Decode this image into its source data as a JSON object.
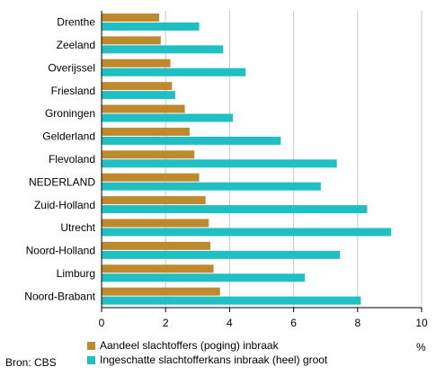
{
  "chart_data": {
    "type": "bar",
    "orientation": "horizontal",
    "categories": [
      "Drenthe",
      "Zeeland",
      "Overijssel",
      "Friesland",
      "Groningen",
      "Gelderland",
      "Flevoland",
      "NEDERLAND",
      "Zuid-Holland",
      "Utrecht",
      "Noord-Holland",
      "Limburg",
      "Noord-Brabant"
    ],
    "series": [
      {
        "name": "Aandeel slachtoffers (poging) inbraak",
        "color": "#BF8A2E",
        "values": [
          1.8,
          1.85,
          2.15,
          2.2,
          2.6,
          2.75,
          2.9,
          3.05,
          3.25,
          3.35,
          3.4,
          3.5,
          3.7
        ]
      },
      {
        "name": "Ingeschatte slachtofferkans inbraak (heel) groot",
        "color": "#1FBFC4",
        "values": [
          3.05,
          3.8,
          4.5,
          2.3,
          4.1,
          5.6,
          7.35,
          6.85,
          8.3,
          9.05,
          7.45,
          6.35,
          8.1
        ]
      }
    ],
    "xlim": [
      0,
      10
    ],
    "xticks": [
      "0",
      "2",
      "4",
      "6",
      "8",
      "10"
    ],
    "xlabel": "%",
    "grid": true,
    "legend_position": "bottom-left"
  },
  "source": "Bron: CBS"
}
